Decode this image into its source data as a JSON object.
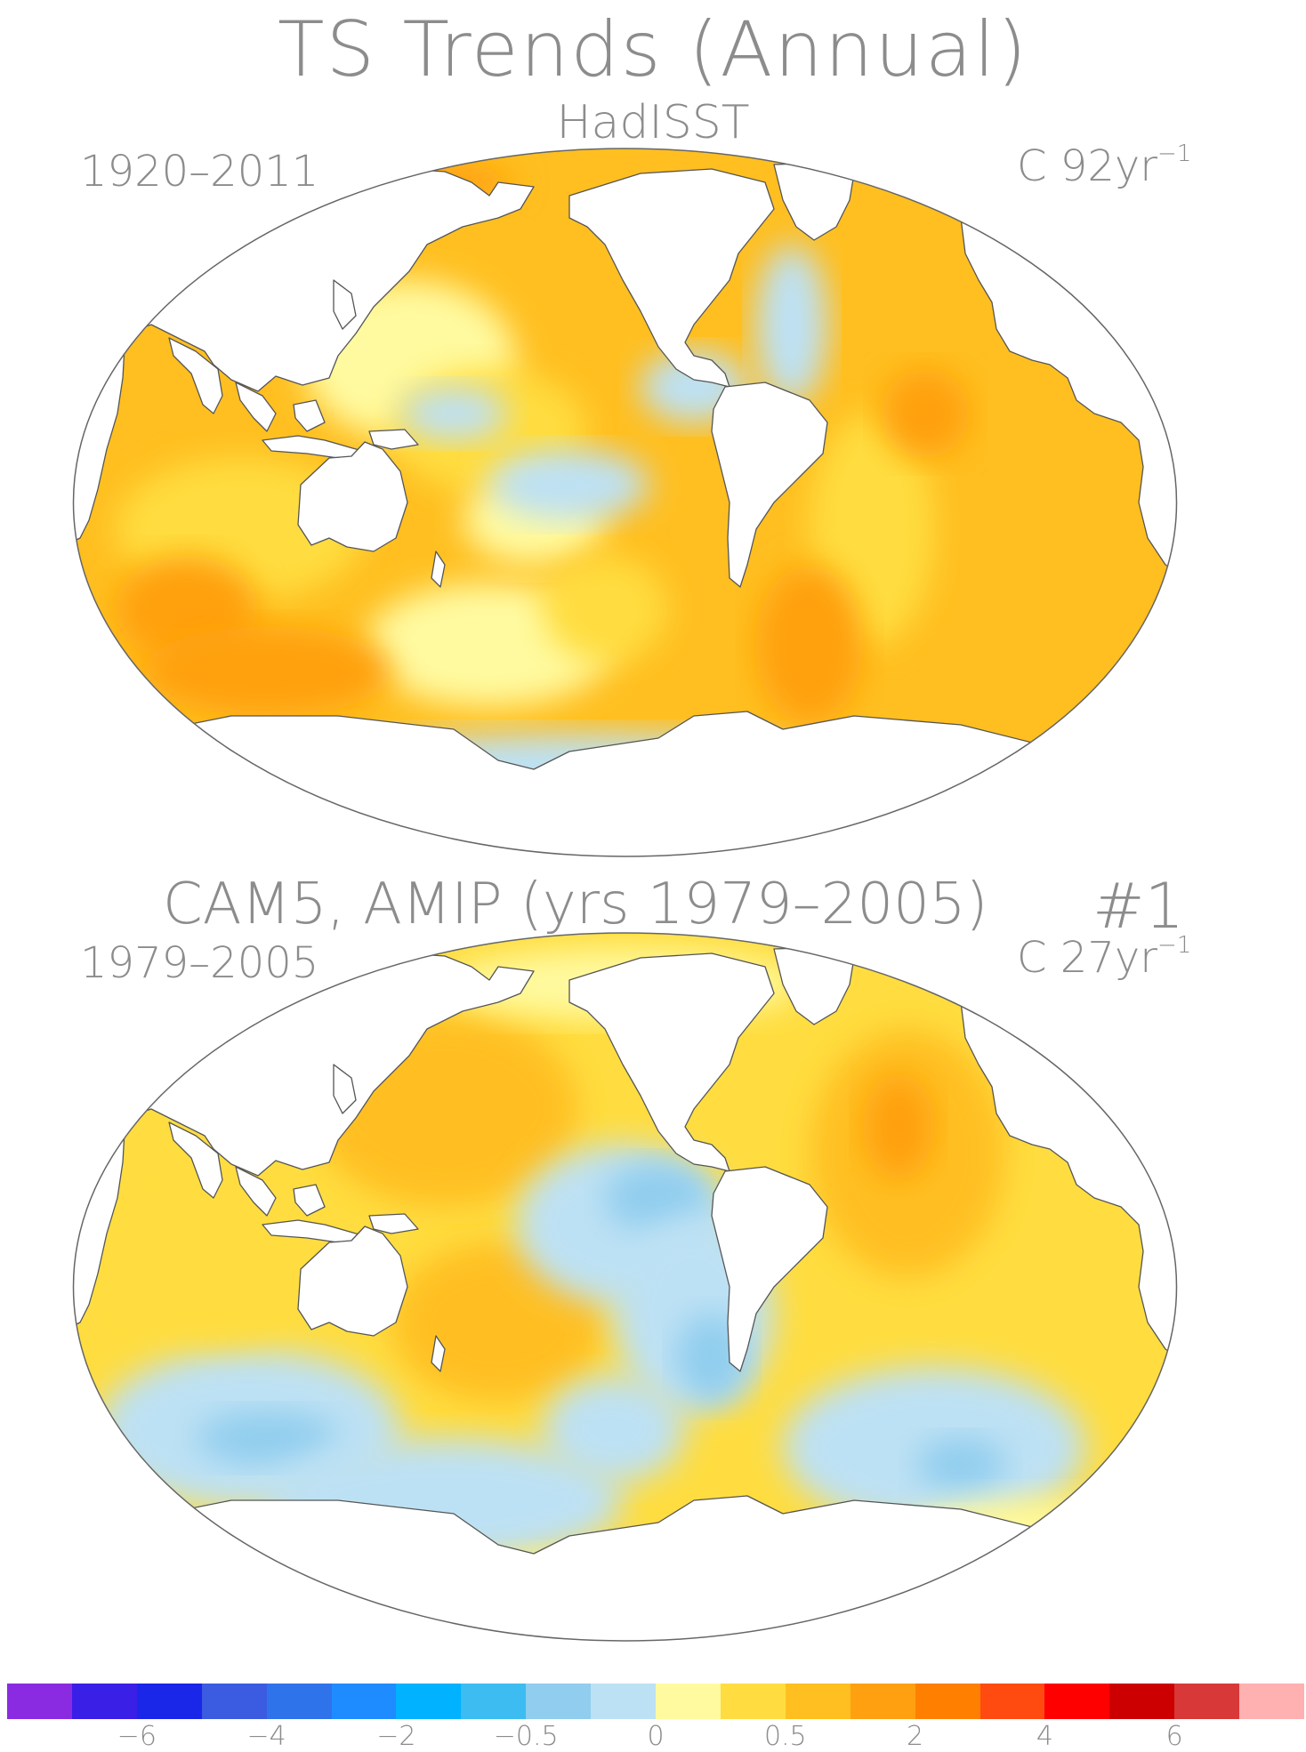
{
  "header": {
    "title": "TS Trends (Annual)",
    "subtitle": "HadISST"
  },
  "panels": [
    {
      "id": "hadisst",
      "period": "1920–2011",
      "unit_prefix": "C 92yr",
      "unit_sup": "−1",
      "pattern": "warm"
    },
    {
      "id": "cam5",
      "title": "CAM5, AMIP (yrs 1979–2005)",
      "run": "#1",
      "period": "1979–2005",
      "unit_prefix": "C 27yr",
      "unit_sup": "−1",
      "pattern": "mixed"
    }
  ],
  "colorbar": {
    "colors": [
      "#8a2be2",
      "#3a1fe6",
      "#1a26e8",
      "#3b5be0",
      "#2f73ea",
      "#1e8cff",
      "#00b2ff",
      "#3cbcf0",
      "#90cdee",
      "#bde1f4",
      "#fffaa0",
      "#ffdd40",
      "#ffbf20",
      "#ffa010",
      "#ff7f00",
      "#ff4a10",
      "#ff0000",
      "#cc0000",
      "#d83838",
      "#ffb0b0"
    ],
    "labels": [
      {
        "value": "−6",
        "boundary": 2
      },
      {
        "value": "−4",
        "boundary": 4
      },
      {
        "value": "−2",
        "boundary": 6
      },
      {
        "value": "−0.5",
        "boundary": 8
      },
      {
        "value": "0",
        "boundary": 10
      },
      {
        "value": "0.5",
        "boundary": 12
      },
      {
        "value": "2",
        "boundary": 14
      },
      {
        "value": "4",
        "boundary": 16
      },
      {
        "value": "6",
        "boundary": 18
      }
    ]
  }
}
